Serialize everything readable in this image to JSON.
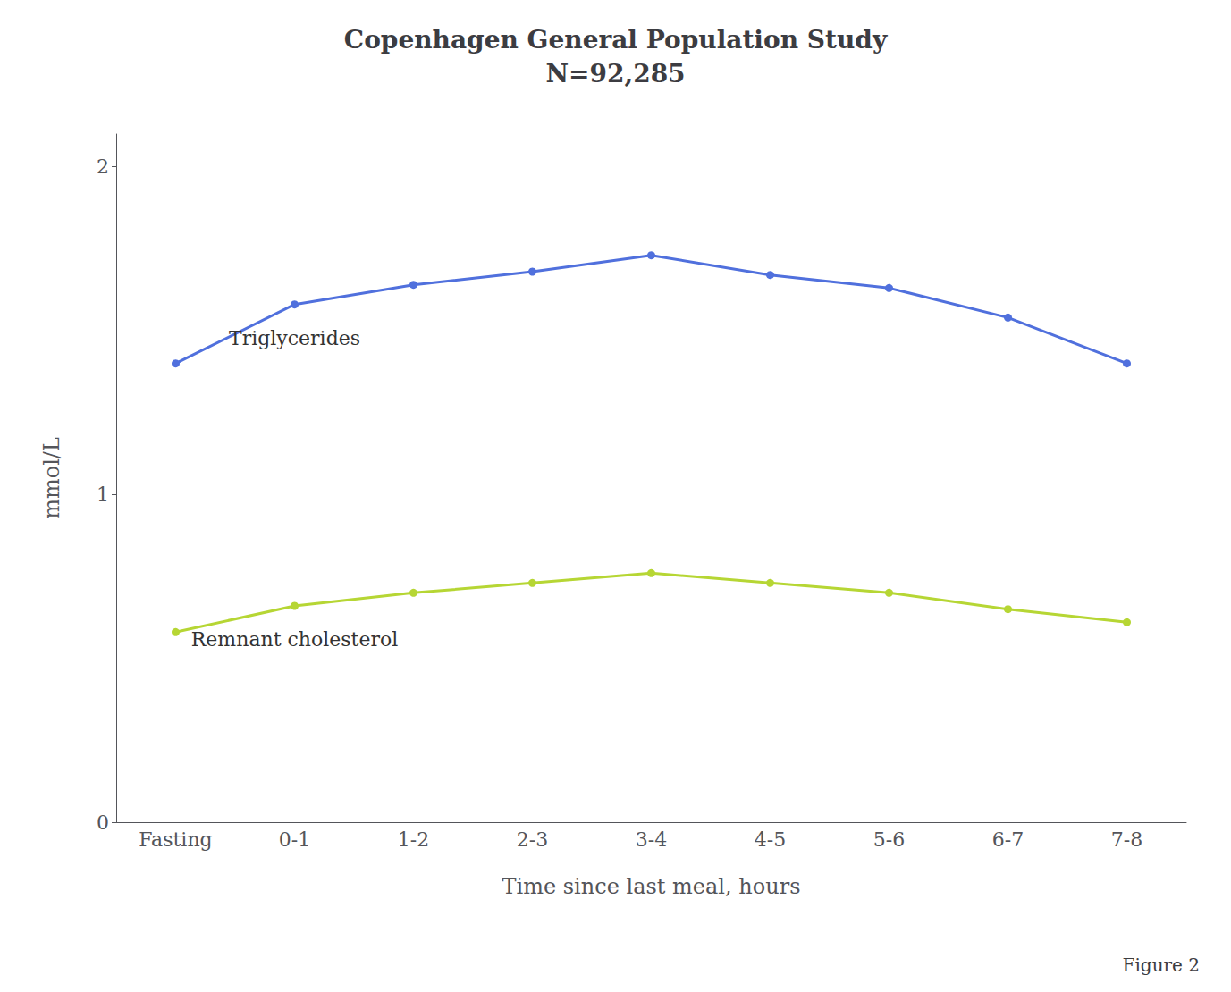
{
  "chart_data": {
    "type": "line",
    "title": "Copenhagen General Population Study\nN=92,285",
    "xlabel": "Time since last meal, hours",
    "ylabel": "mmol/L",
    "categories": [
      "Fasting",
      "0-1",
      "1-2",
      "2-3",
      "3-4",
      "4-5",
      "5-6",
      "6-7",
      "7-8"
    ],
    "series": [
      {
        "values": [
          1.4,
          1.58,
          1.64,
          1.68,
          1.73,
          1.67,
          1.63,
          1.54,
          1.4
        ]
      },
      {
        "values": [
          0.58,
          0.66,
          0.7,
          0.73,
          0.76,
          0.73,
          0.7,
          0.65,
          0.61
        ]
      }
    ],
    "annotations": [
      "Triglycerides",
      "Remnant cholesterol"
    ],
    "caption": "Figure 2",
    "ylim": [
      0,
      2.1
    ],
    "yticks": [
      0,
      1,
      2
    ],
    "grid": false,
    "marker": "circle"
  }
}
